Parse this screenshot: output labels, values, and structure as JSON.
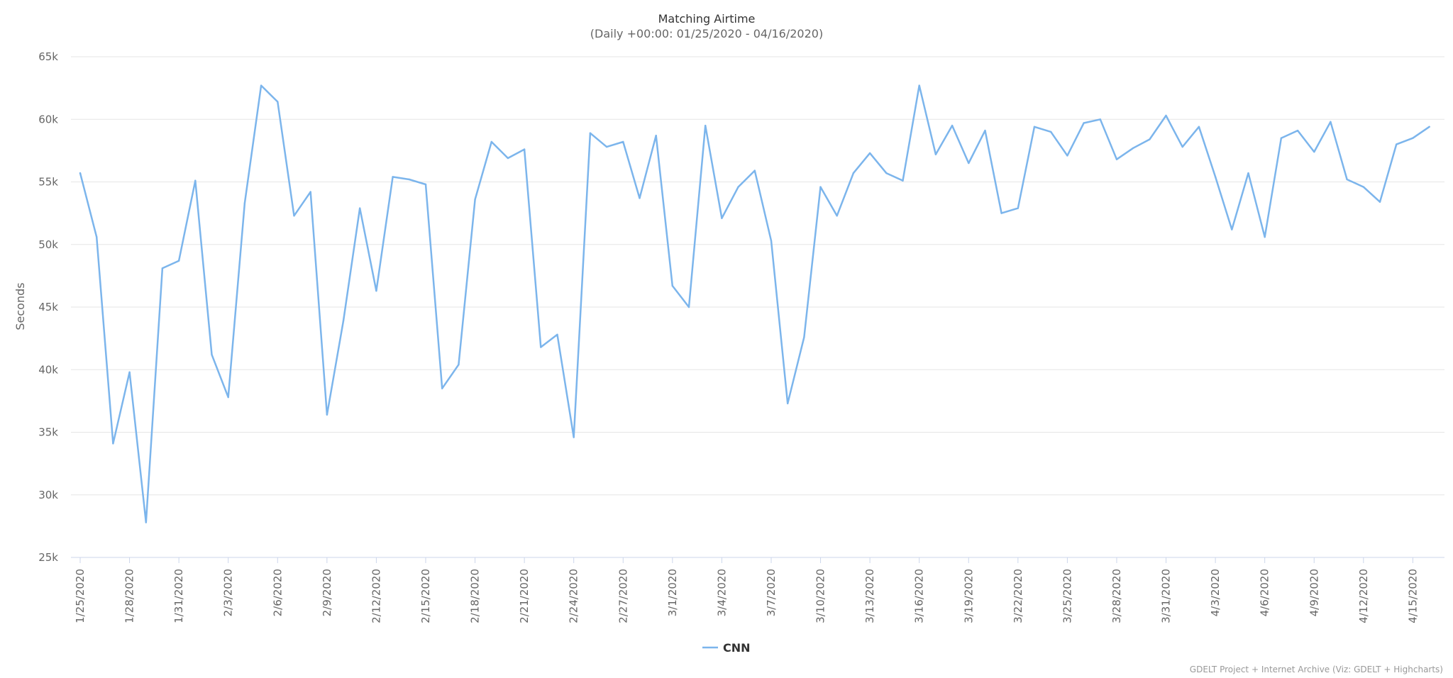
{
  "chart_data": {
    "type": "line",
    "title": "Matching Airtime",
    "subtitle": "(Daily +00:00: 01/25/2020 - 04/16/2020)",
    "xlabel": "",
    "ylabel": "Seconds",
    "ylim": [
      25000,
      65000
    ],
    "y_ticks": [
      {
        "value": 25000,
        "label": "25k"
      },
      {
        "value": 30000,
        "label": "30k"
      },
      {
        "value": 35000,
        "label": "35k"
      },
      {
        "value": 40000,
        "label": "40k"
      },
      {
        "value": 45000,
        "label": "45k"
      },
      {
        "value": 50000,
        "label": "50k"
      },
      {
        "value": 55000,
        "label": "55k"
      },
      {
        "value": 60000,
        "label": "60k"
      },
      {
        "value": 65000,
        "label": "65k"
      }
    ],
    "x_tick_labels": [
      "1/25/2020",
      "1/28/2020",
      "1/31/2020",
      "2/3/2020",
      "2/6/2020",
      "2/9/2020",
      "2/12/2020",
      "2/15/2020",
      "2/18/2020",
      "2/21/2020",
      "2/24/2020",
      "2/27/2020",
      "3/1/2020",
      "3/4/2020",
      "3/7/2020",
      "3/10/2020",
      "3/13/2020",
      "3/16/2020",
      "3/19/2020",
      "3/22/2020",
      "3/25/2020",
      "3/28/2020",
      "3/31/2020",
      "4/3/2020",
      "4/6/2020",
      "4/9/2020",
      "4/12/2020",
      "4/15/2020"
    ],
    "x_tick_every": 3,
    "grid": true,
    "legend_position": "bottom-center",
    "colors": {
      "series": "#7cb5ec",
      "grid": "#e6e6e6",
      "axis": "#ccd6eb"
    },
    "series": [
      {
        "name": "CNN",
        "x": [
          "1/25/2020",
          "1/26/2020",
          "1/27/2020",
          "1/28/2020",
          "1/29/2020",
          "1/30/2020",
          "1/31/2020",
          "2/1/2020",
          "2/2/2020",
          "2/3/2020",
          "2/4/2020",
          "2/5/2020",
          "2/6/2020",
          "2/7/2020",
          "2/8/2020",
          "2/9/2020",
          "2/10/2020",
          "2/11/2020",
          "2/12/2020",
          "2/13/2020",
          "2/14/2020",
          "2/15/2020",
          "2/16/2020",
          "2/17/2020",
          "2/18/2020",
          "2/19/2020",
          "2/20/2020",
          "2/21/2020",
          "2/22/2020",
          "2/23/2020",
          "2/24/2020",
          "2/25/2020",
          "2/26/2020",
          "2/27/2020",
          "2/28/2020",
          "2/29/2020",
          "3/1/2020",
          "3/2/2020",
          "3/3/2020",
          "3/4/2020",
          "3/5/2020",
          "3/6/2020",
          "3/7/2020",
          "3/8/2020",
          "3/9/2020",
          "3/10/2020",
          "3/11/2020",
          "3/12/2020",
          "3/13/2020",
          "3/14/2020",
          "3/15/2020",
          "3/16/2020",
          "3/17/2020",
          "3/18/2020",
          "3/19/2020",
          "3/20/2020",
          "3/21/2020",
          "3/22/2020",
          "3/23/2020",
          "3/24/2020",
          "3/25/2020",
          "3/26/2020",
          "3/27/2020",
          "3/28/2020",
          "3/29/2020",
          "3/30/2020",
          "3/31/2020",
          "4/1/2020",
          "4/2/2020",
          "4/3/2020",
          "4/4/2020",
          "4/5/2020",
          "4/6/2020",
          "4/7/2020",
          "4/8/2020",
          "4/9/2020",
          "4/10/2020",
          "4/11/2020",
          "4/12/2020",
          "4/13/2020",
          "4/14/2020",
          "4/15/2020",
          "4/16/2020"
        ],
        "values": [
          55700,
          50600,
          34100,
          39800,
          27800,
          48100,
          48700,
          55100,
          41200,
          37800,
          53300,
          62700,
          61400,
          52300,
          54200,
          36400,
          43900,
          52900,
          46300,
          55400,
          55200,
          54800,
          38500,
          40400,
          53600,
          58200,
          56900,
          57600,
          41800,
          42800,
          34600,
          58900,
          57800,
          58200,
          53700,
          58700,
          46700,
          45000,
          59500,
          52100,
          54600,
          55900,
          50300,
          37300,
          42600,
          54600,
          52300,
          55700,
          57300,
          55700,
          55100,
          62700,
          57200,
          59500,
          56500,
          59100,
          52500,
          52900,
          59400,
          59000,
          57100,
          59700,
          60000,
          56800,
          57700,
          58400,
          60300,
          57800,
          59400,
          55400,
          51200,
          55700,
          50600,
          58500,
          59100,
          57400,
          59800,
          55200,
          54600,
          53400,
          58000,
          58500,
          59400
        ]
      }
    ]
  },
  "credits": "GDELT Project + Internet Archive (Viz: GDELT + Highcharts)"
}
